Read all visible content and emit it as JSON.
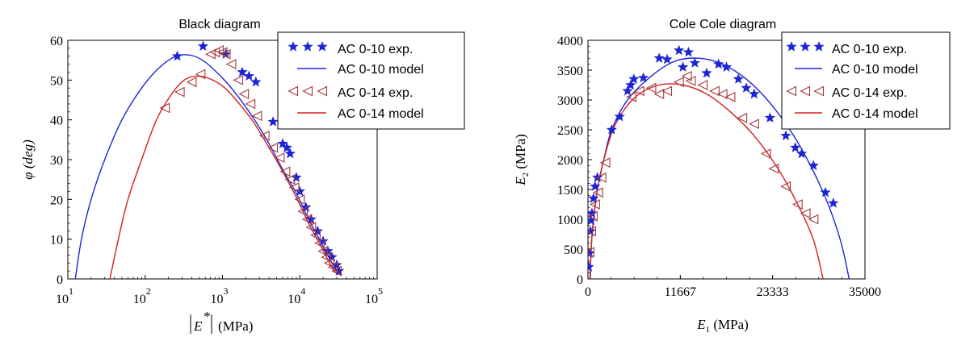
{
  "chart_data": [
    {
      "type": "scatter",
      "title": "Black diagram",
      "xlabel": "|E*| (MPa)",
      "ylabel": "φ (deg)",
      "xscale": "log",
      "xlim": [
        10,
        100000
      ],
      "ylim": [
        0,
        60
      ],
      "x_ticks": [
        10,
        100,
        1000,
        10000,
        100000
      ],
      "y_ticks": [
        0,
        10,
        20,
        30,
        40,
        50,
        60
      ],
      "legend_position": "top-right",
      "series": [
        {
          "name": "AC 0-10 exp.",
          "kind": "markers",
          "marker": "star",
          "color": "#1c25d6",
          "points": [
            [
              260,
              56
            ],
            [
              560,
              58.5
            ],
            [
              1100,
              56.5
            ],
            [
              1800,
              52
            ],
            [
              2200,
              51
            ],
            [
              2700,
              49.5
            ],
            [
              4500,
              39.5
            ],
            [
              6000,
              34
            ],
            [
              6800,
              33
            ],
            [
              7500,
              31.5
            ],
            [
              9000,
              25.5
            ],
            [
              10000,
              22
            ],
            [
              12000,
              18
            ],
            [
              14000,
              15
            ],
            [
              17000,
              12
            ],
            [
              20000,
              9.5
            ],
            [
              23000,
              7
            ],
            [
              26000,
              5.5
            ],
            [
              30000,
              3.5
            ],
            [
              32000,
              2
            ]
          ]
        },
        {
          "name": "AC 0-10 model",
          "kind": "line",
          "color": "#1c25d6",
          "points": [
            [
              12.5,
              0
            ],
            [
              15,
              10
            ],
            [
              20,
              20
            ],
            [
              30,
              30
            ],
            [
              50,
              40
            ],
            [
              90,
              48
            ],
            [
              150,
              53
            ],
            [
              250,
              56
            ],
            [
              400,
              56.2
            ],
            [
              600,
              54.5
            ],
            [
              1000,
              50.5
            ],
            [
              1500,
              46.5
            ],
            [
              2500,
              40.5
            ],
            [
              4000,
              34
            ],
            [
              6000,
              27.5
            ],
            [
              9000,
              21.5
            ],
            [
              13000,
              15
            ],
            [
              19000,
              9
            ],
            [
              26000,
              4
            ],
            [
              33000,
              1
            ]
          ]
        },
        {
          "name": "AC 0-14 exp.",
          "kind": "markers",
          "marker": "triangle-left",
          "color": "#a33a3a",
          "points": [
            [
              180,
              43
            ],
            [
              280,
              47
            ],
            [
              400,
              49.5
            ],
            [
              520,
              51.5
            ],
            [
              700,
              56.5
            ],
            [
              800,
              57
            ],
            [
              900,
              57.5
            ],
            [
              1000,
              57
            ],
            [
              1100,
              56.5
            ],
            [
              1300,
              54
            ],
            [
              1600,
              50
            ],
            [
              1900,
              46.5
            ],
            [
              2300,
              44
            ],
            [
              2800,
              41
            ],
            [
              3500,
              36
            ],
            [
              4500,
              33
            ],
            [
              5500,
              30.5
            ],
            [
              6500,
              27
            ],
            [
              7500,
              25
            ],
            [
              8500,
              23
            ],
            [
              10000,
              20
            ],
            [
              11000,
              17
            ],
            [
              12500,
              15
            ],
            [
              14000,
              13
            ],
            [
              16000,
              11
            ],
            [
              18000,
              9
            ],
            [
              20000,
              7
            ],
            [
              22000,
              5.5
            ],
            [
              24000,
              4
            ],
            [
              27000,
              3
            ],
            [
              30000,
              2
            ]
          ]
        },
        {
          "name": "AC 0-14 model",
          "kind": "line",
          "color": "#d81e1e",
          "points": [
            [
              35,
              0
            ],
            [
              45,
              10
            ],
            [
              60,
              20
            ],
            [
              90,
              30
            ],
            [
              140,
              40
            ],
            [
              220,
              46.5
            ],
            [
              320,
              50
            ],
            [
              450,
              51
            ],
            [
              650,
              50.5
            ],
            [
              1000,
              48.5
            ],
            [
              1500,
              45
            ],
            [
              2500,
              39.5
            ],
            [
              4000,
              33
            ],
            [
              6000,
              27
            ],
            [
              9000,
              20.5
            ],
            [
              13000,
              14
            ],
            [
              19000,
              8
            ],
            [
              26000,
              3
            ],
            [
              31000,
              1
            ]
          ]
        }
      ]
    },
    {
      "type": "scatter",
      "title": "Cole Cole diagram",
      "xlabel": "E1 (MPa)",
      "ylabel": "E2 (MPa)",
      "xscale": "linear",
      "xlim": [
        0,
        35000
      ],
      "ylim": [
        0,
        4000
      ],
      "x_ticks": [
        0,
        11667,
        23333,
        35000
      ],
      "y_ticks": [
        0,
        500,
        1000,
        1500,
        2000,
        2500,
        3000,
        3500,
        4000
      ],
      "legend_position": "top-right",
      "series": [
        {
          "name": "AC 0-10 exp.",
          "kind": "markers",
          "marker": "star",
          "color": "#1c25d6",
          "points": [
            [
              100,
              200
            ],
            [
              200,
              430
            ],
            [
              300,
              800
            ],
            [
              400,
              980
            ],
            [
              500,
              1100
            ],
            [
              700,
              1350
            ],
            [
              900,
              1550
            ],
            [
              1200,
              1700
            ],
            [
              3000,
              2500
            ],
            [
              4000,
              2720
            ],
            [
              5000,
              3150
            ],
            [
              5400,
              3250
            ],
            [
              5800,
              3350
            ],
            [
              7000,
              3370
            ],
            [
              9000,
              3700
            ],
            [
              10000,
              3680
            ],
            [
              11500,
              3830
            ],
            [
              12000,
              3550
            ],
            [
              12700,
              3800
            ],
            [
              13500,
              3620
            ],
            [
              15000,
              3450
            ],
            [
              16500,
              3600
            ],
            [
              17500,
              3550
            ],
            [
              19000,
              3350
            ],
            [
              20000,
              3200
            ],
            [
              21000,
              3100
            ],
            [
              23000,
              2700
            ],
            [
              25000,
              2400
            ],
            [
              26200,
              2200
            ],
            [
              27000,
              2100
            ],
            [
              28500,
              1900
            ],
            [
              30000,
              1450
            ],
            [
              31000,
              1270
            ]
          ]
        },
        {
          "name": "AC 0-10 model",
          "kind": "line",
          "color": "#1c25d6",
          "points": [
            [
              300,
              0
            ],
            [
              400,
              500
            ],
            [
              700,
              1000
            ],
            [
              1200,
              1500
            ],
            [
              2000,
              2000
            ],
            [
              3000,
              2500
            ],
            [
              5000,
              3000
            ],
            [
              8000,
              3400
            ],
            [
              11000,
              3650
            ],
            [
              14000,
              3700
            ],
            [
              17000,
              3600
            ],
            [
              20000,
              3350
            ],
            [
              23000,
              2950
            ],
            [
              26000,
              2400
            ],
            [
              28500,
              1800
            ],
            [
              30500,
              1200
            ],
            [
              32000,
              600
            ],
            [
              33000,
              0
            ]
          ]
        },
        {
          "name": "AC 0-14 exp.",
          "kind": "markers",
          "marker": "triangle-left",
          "color": "#a33a3a",
          "points": [
            [
              200,
              450
            ],
            [
              400,
              800
            ],
            [
              600,
              1050
            ],
            [
              900,
              1250
            ],
            [
              1300,
              1450
            ],
            [
              1700,
              1700
            ],
            [
              2200,
              1950
            ],
            [
              5500,
              3050
            ],
            [
              6500,
              3150
            ],
            [
              8000,
              3200
            ],
            [
              9000,
              3100
            ],
            [
              10000,
              3150
            ],
            [
              11500,
              3300
            ],
            [
              12500,
              3400
            ],
            [
              13000,
              3320
            ],
            [
              14500,
              3250
            ],
            [
              16000,
              3150
            ],
            [
              17000,
              3100
            ],
            [
              18000,
              3050
            ],
            [
              19500,
              2700
            ],
            [
              21000,
              2600
            ],
            [
              22500,
              2100
            ],
            [
              23500,
              1850
            ],
            [
              25000,
              1550
            ],
            [
              26500,
              1250
            ],
            [
              27500,
              1100
            ],
            [
              28500,
              1000
            ]
          ]
        },
        {
          "name": "AC 0-14 model",
          "kind": "line",
          "color": "#d81e1e",
          "points": [
            [
              250,
              0
            ],
            [
              400,
              500
            ],
            [
              700,
              1000
            ],
            [
              1200,
              1500
            ],
            [
              2000,
              2000
            ],
            [
              3500,
              2600
            ],
            [
              6000,
              3050
            ],
            [
              9000,
              3250
            ],
            [
              12000,
              3250
            ],
            [
              15000,
              3100
            ],
            [
              18000,
              2800
            ],
            [
              21000,
              2400
            ],
            [
              24000,
              1850
            ],
            [
              26500,
              1250
            ],
            [
              28500,
              650
            ],
            [
              29700,
              0
            ]
          ]
        }
      ]
    }
  ]
}
